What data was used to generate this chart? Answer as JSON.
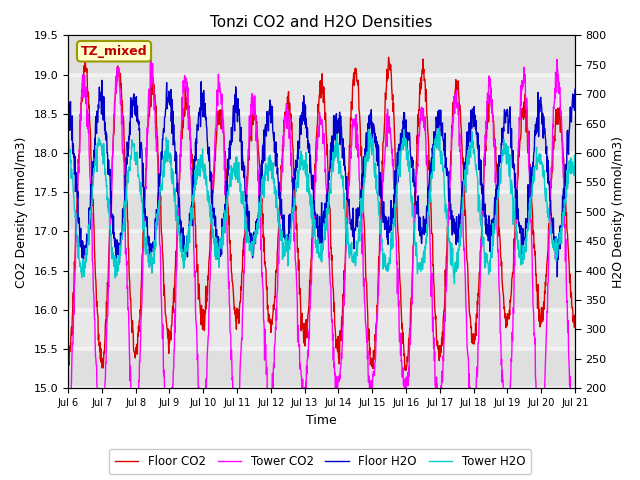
{
  "title": "Tonzi CO2 and H2O Densities",
  "xlabel": "Time",
  "ylabel_left": "CO2 Density (mmol/m3)",
  "ylabel_right": "H2O Density (mmol/m3)",
  "ylim_left": [
    15.0,
    19.5
  ],
  "ylim_right": [
    200,
    800
  ],
  "annotation_text": "TZ_mixed",
  "annotation_color": "#bb0000",
  "annotation_bg": "#ffffcc",
  "annotation_border": "#999900",
  "legend_labels": [
    "Floor CO2",
    "Tower CO2",
    "Floor H2O",
    "Tower H2O"
  ],
  "legend_colors": [
    "#dd0000",
    "#ff00ff",
    "#0000cc",
    "#00cccc"
  ],
  "line_width": 1.0,
  "background_color": "#e8e8e8",
  "xtick_labels": [
    "Jul 6",
    "Jul 7",
    "Jul 8",
    "Jul 9",
    "Jul 10",
    "Jul 11",
    "Jul 12",
    "Jul 13",
    "Jul 14",
    "Jul 15",
    "Jul 16",
    "Jul 17",
    "Jul 18",
    "Jul 19",
    "Jul 20",
    "Jul 21"
  ],
  "xtick_positions": [
    0,
    1,
    2,
    3,
    4,
    5,
    6,
    7,
    8,
    9,
    10,
    11,
    12,
    13,
    14,
    15
  ],
  "yticks_left": [
    15.0,
    15.5,
    16.0,
    16.5,
    17.0,
    17.5,
    18.0,
    18.5,
    19.0,
    19.5
  ],
  "yticks_right": [
    200,
    250,
    300,
    350,
    400,
    450,
    500,
    550,
    600,
    650,
    700,
    750,
    800
  ],
  "n_points": 1440,
  "days": 15,
  "seed": 12345
}
